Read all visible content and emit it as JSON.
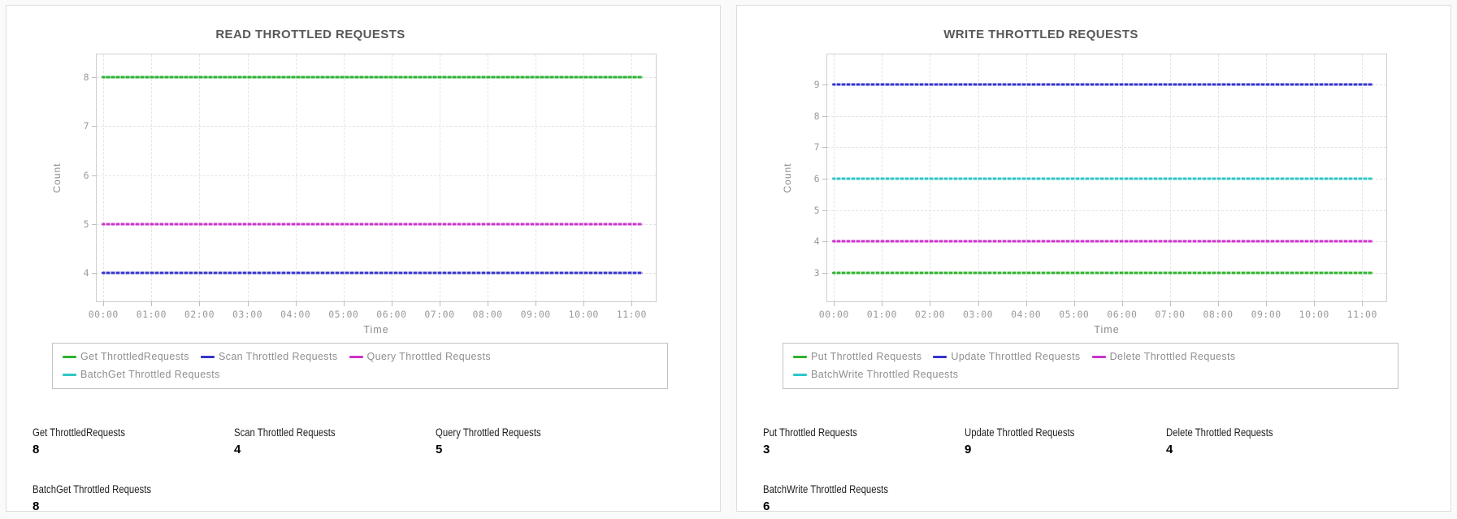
{
  "panels": [
    {
      "title": "READ THROTTLED REQUESTS",
      "stats": [
        {
          "label": "Get ThrottledRequests",
          "value": "8"
        },
        {
          "label": "Scan Throttled Requests",
          "value": "4"
        },
        {
          "label": "Query Throttled Requests",
          "value": "5"
        },
        {
          "label": "BatchGet Throttled Requests",
          "value": "8"
        }
      ]
    },
    {
      "title": "WRITE THROTTLED REQUESTS",
      "stats": [
        {
          "label": "Put Throttled Requests",
          "value": "3"
        },
        {
          "label": "Update Throttled Requests",
          "value": "9"
        },
        {
          "label": "Delete Throttled Requests",
          "value": "4"
        },
        {
          "label": "BatchWrite Throttled Requests",
          "value": "6"
        }
      ]
    }
  ],
  "chart_data": [
    {
      "type": "line",
      "title": "READ THROTTLED REQUESTS",
      "xlabel": "Time",
      "ylabel": "Count",
      "x_ticks": [
        "00:00",
        "01:00",
        "02:00",
        "03:00",
        "04:00",
        "05:00",
        "06:00",
        "07:00",
        "08:00",
        "09:00",
        "10:00",
        "11:00"
      ],
      "yticks": [
        4,
        5,
        6,
        7,
        8
      ],
      "ylim": [
        3.42,
        8.47
      ],
      "x_span_hours": [
        0.1,
        11.25
      ],
      "grid": true,
      "legend_position": "bottom",
      "series": [
        {
          "name": "Get ThrottledRequests",
          "color": "#2db32d",
          "value": 8
        },
        {
          "name": "Scan Throttled Requests",
          "color": "#3434cc",
          "value": 4
        },
        {
          "name": "Query Throttled Requests",
          "color": "#cc33cc",
          "value": 5
        },
        {
          "name": "BatchGet Throttled Requests",
          "color": "#2fc6c6",
          "value": 8
        }
      ]
    },
    {
      "type": "line",
      "title": "WRITE THROTTLED REQUESTS",
      "xlabel": "Time",
      "ylabel": "Count",
      "x_ticks": [
        "00:00",
        "01:00",
        "02:00",
        "03:00",
        "04:00",
        "05:00",
        "06:00",
        "07:00",
        "08:00",
        "09:00",
        "10:00",
        "11:00"
      ],
      "yticks": [
        3,
        4,
        5,
        6,
        7,
        8,
        9
      ],
      "ylim": [
        2.1,
        9.95
      ],
      "x_span_hours": [
        0.1,
        11.25
      ],
      "grid": true,
      "legend_position": "bottom",
      "series": [
        {
          "name": "Put Throttled Requests",
          "color": "#2db32d",
          "value": 3
        },
        {
          "name": "Update Throttled Requests",
          "color": "#3434cc",
          "value": 9
        },
        {
          "name": "Delete Throttled Requests",
          "color": "#cc33cc",
          "value": 4
        },
        {
          "name": "BatchWrite Throttled Requests",
          "color": "#2fc6c6",
          "value": 6
        }
      ]
    }
  ]
}
